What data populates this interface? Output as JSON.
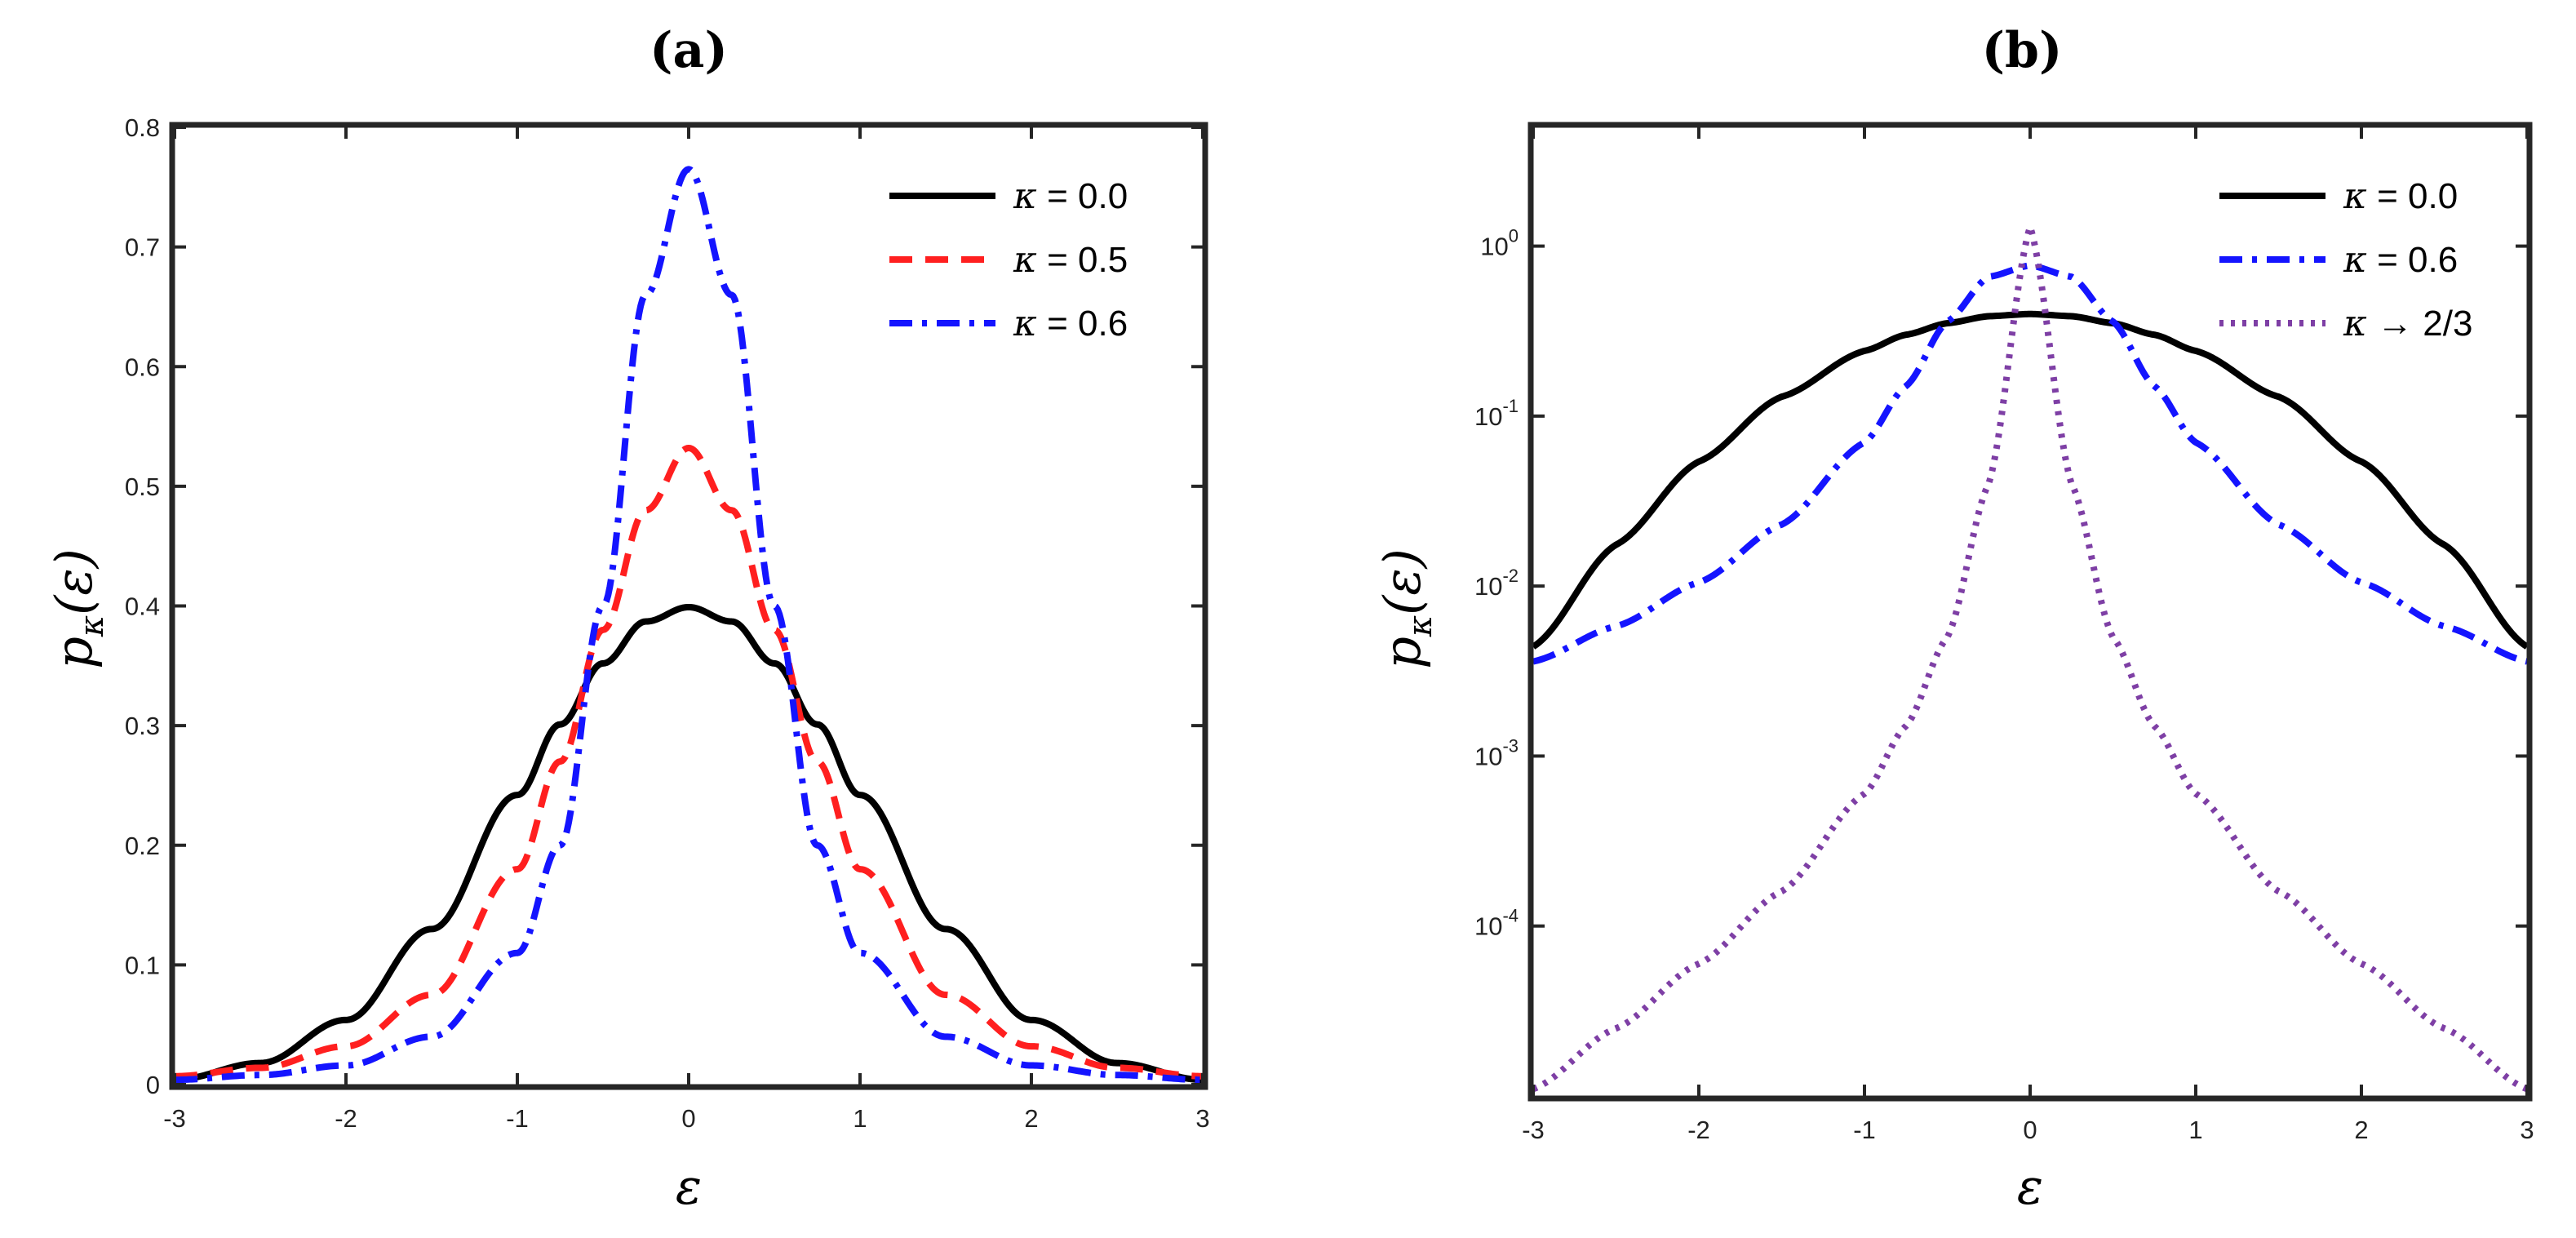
{
  "chart_data": [
    {
      "panel": "a",
      "type": "line",
      "title": "(a)",
      "xlabel": "ε",
      "ylabel": "p_κ(ε)",
      "ylabel_main": "p",
      "ylabel_sub": "κ",
      "ylabel_arg": "(ε)",
      "yscale": "linear",
      "xlim": [
        -3,
        3
      ],
      "ylim": [
        0,
        0.8
      ],
      "x_ticks": [
        -3,
        -2,
        -1,
        0,
        1,
        2,
        3
      ],
      "x_tick_labels": [
        "-3",
        "-2",
        "-1",
        "0",
        "1",
        "2",
        "3"
      ],
      "y_ticks": [
        0,
        0.1,
        0.2,
        0.3,
        0.4,
        0.5,
        0.6,
        0.7,
        0.8
      ],
      "y_tick_labels": [
        "0",
        "0.1",
        "0.2",
        "0.3",
        "0.4",
        "0.5",
        "0.6",
        "0.7",
        "0.8"
      ],
      "grid": false,
      "legend_position": "top-right",
      "x": [
        -3,
        -2.5,
        -2,
        -1.5,
        -1,
        -0.75,
        -0.5,
        -0.25,
        0,
        0.25,
        0.5,
        0.75,
        1,
        1.5,
        2,
        2.5,
        3
      ],
      "series": [
        {
          "name": "κ = 0.0",
          "legend_symbol": "κ",
          "legend_value": "= 0.0",
          "color": "#000000",
          "dash": "solid",
          "values": [
            0.004,
            0.018,
            0.054,
            0.13,
            0.242,
            0.301,
            0.352,
            0.387,
            0.399,
            0.387,
            0.352,
            0.301,
            0.242,
            0.13,
            0.054,
            0.018,
            0.004
          ]
        },
        {
          "name": "κ = 0.5",
          "legend_symbol": "κ",
          "legend_value": "= 0.5",
          "color": "#ff1f1f",
          "dash": "dashed",
          "values": [
            0.007,
            0.014,
            0.032,
            0.075,
            0.18,
            0.27,
            0.38,
            0.48,
            0.532,
            0.48,
            0.38,
            0.27,
            0.18,
            0.075,
            0.032,
            0.014,
            0.007
          ]
        },
        {
          "name": "κ = 0.6",
          "legend_symbol": "κ",
          "legend_value": "= 0.6",
          "color": "#1414ff",
          "dash": "dashdot",
          "values": [
            0.004,
            0.008,
            0.016,
            0.04,
            0.11,
            0.2,
            0.4,
            0.66,
            0.765,
            0.66,
            0.4,
            0.2,
            0.11,
            0.04,
            0.016,
            0.008,
            0.004
          ]
        }
      ]
    },
    {
      "panel": "b",
      "type": "line",
      "title": "(b)",
      "xlabel": "ε",
      "ylabel": "p_κ(ε)",
      "ylabel_main": "p",
      "ylabel_sub": "κ",
      "ylabel_arg": "(ε)",
      "yscale": "log",
      "xlim": [
        -3,
        3
      ],
      "ylim": [
        1e-05,
        5
      ],
      "x_ticks": [
        -3,
        -2,
        -1,
        0,
        1,
        2,
        3
      ],
      "x_tick_labels": [
        "-3",
        "-2",
        "-1",
        "0",
        "1",
        "2",
        "3"
      ],
      "y_ticks": [
        0.0001,
        0.001,
        0.01,
        0.1,
        1
      ],
      "y_tick_labels": [
        {
          "base": "10",
          "exp": "-4"
        },
        {
          "base": "10",
          "exp": "-3"
        },
        {
          "base": "10",
          "exp": "-2"
        },
        {
          "base": "10",
          "exp": "-1"
        },
        {
          "base": "10",
          "exp": "0"
        }
      ],
      "grid": false,
      "legend_position": "top-right",
      "x": [
        -3,
        -2.5,
        -2,
        -1.5,
        -1,
        -0.75,
        -0.5,
        -0.25,
        0,
        0.25,
        0.5,
        0.75,
        1,
        1.5,
        2,
        2.5,
        3
      ],
      "series": [
        {
          "name": "κ = 0.0",
          "legend_symbol": "κ",
          "legend_value": "= 0.0",
          "color": "#000000",
          "dash": "solid",
          "values": [
            0.0044,
            0.0175,
            0.054,
            0.13,
            0.242,
            0.301,
            0.352,
            0.387,
            0.399,
            0.387,
            0.352,
            0.301,
            0.242,
            0.13,
            0.054,
            0.0175,
            0.0044
          ]
        },
        {
          "name": "κ = 0.6",
          "legend_symbol": "κ",
          "legend_value": "= 0.6",
          "color": "#1414ff",
          "dash": "dashdot",
          "values": [
            0.0036,
            0.0058,
            0.0105,
            0.023,
            0.07,
            0.15,
            0.36,
            0.66,
            0.77,
            0.66,
            0.36,
            0.15,
            0.07,
            0.023,
            0.0105,
            0.0058,
            0.0036
          ]
        },
        {
          "name": "κ → 2/3",
          "legend_symbol": "κ",
          "legend_value": "→ 2/3",
          "color": "#7e3fa5",
          "dash": "dotted",
          "values": [
            1.1e-05,
            2.5e-05,
            6e-05,
            0.00016,
            0.0006,
            0.0015,
            0.005,
            0.04,
            1.3,
            0.04,
            0.005,
            0.0015,
            0.0006,
            0.00016,
            6e-05,
            2.5e-05,
            1.1e-05
          ]
        }
      ]
    }
  ]
}
